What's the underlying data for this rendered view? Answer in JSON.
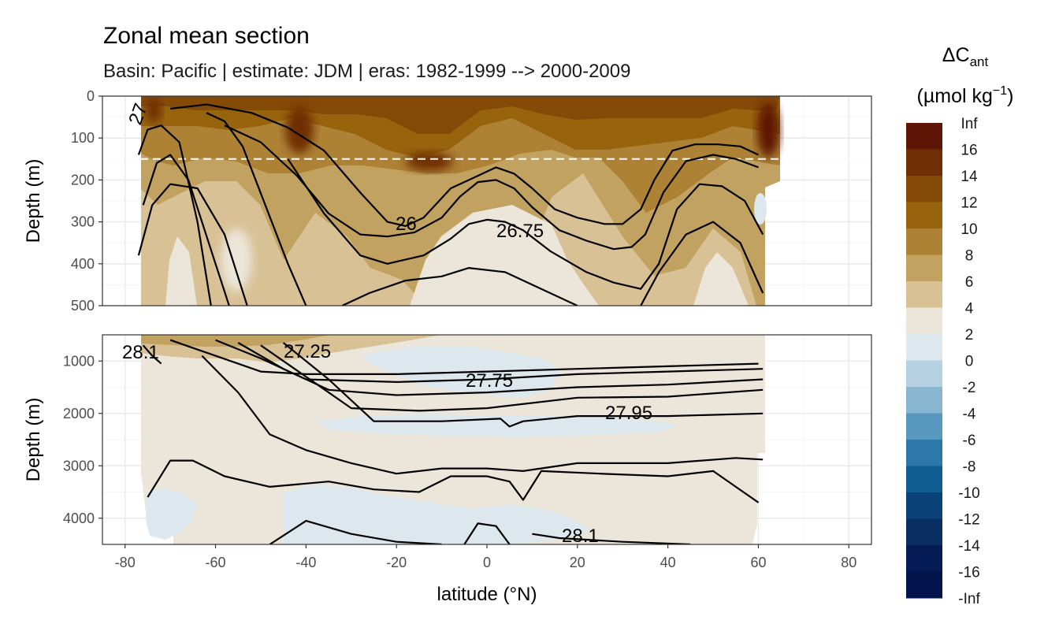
{
  "chart_data": {
    "type": "heatmap",
    "title": "Zonal mean section",
    "subtitle": "Basin: Pacific | estimate: JDM  | eras: 1982-1999 --> 2000-2009",
    "xlabel": "latitude (°N)",
    "ylabel_top": "Depth (m)",
    "ylabel_bottom": "Depth (m)",
    "xlim": [
      -85,
      85
    ],
    "xticks": [
      "-80",
      "-60",
      "-40",
      "-20",
      "0",
      "20",
      "40",
      "60",
      "80"
    ],
    "top_panel": {
      "ylim": [
        0,
        500
      ],
      "yticks": [
        "0",
        "100",
        "200",
        "300",
        "400",
        "500"
      ],
      "reference_depth": 150
    },
    "bottom_panel": {
      "ylim": [
        500,
        4500
      ],
      "yticks": [
        "1000",
        "2000",
        "3000",
        "4000"
      ]
    },
    "legend": {
      "title_main": "ΔC",
      "title_sub": "ant",
      "units_prefix": "(µmol kg",
      "units_sup": "−1",
      "units_suffix": ")",
      "labels": [
        "Inf",
        "16",
        "14",
        "12",
        "10",
        "8",
        "6",
        "4",
        "2",
        "0",
        "-2",
        "-4",
        "-6",
        "-8",
        "-10",
        "-12",
        "-14",
        "-16",
        "-Inf"
      ],
      "colors": [
        "#5e1505",
        "#6f2f04",
        "#844a08",
        "#97640d",
        "#ad8235",
        "#c2a260",
        "#d8c195",
        "#ebe6d9",
        "#dde8ee",
        "#b6d1e2",
        "#88b6d1",
        "#5897be",
        "#2c78a8",
        "#0f5c92",
        "#0a4278",
        "#082e62",
        "#041a55",
        "#03134b"
      ]
    },
    "contour_labels": [
      "26",
      "26.75",
      "27.25",
      "27.75",
      "27.95",
      "28.1",
      "28.1",
      "27"
    ],
    "contours_top": [
      [
        [
          -77,
          140
        ],
        [
          -75,
          80
        ],
        [
          -72,
          70
        ],
        [
          -68,
          110
        ],
        [
          -64,
          300
        ],
        [
          -61,
          500
        ]
      ],
      [
        [
          -76,
          260
        ],
        [
          -73,
          160
        ],
        [
          -70,
          140
        ],
        [
          -66,
          200
        ],
        [
          -60,
          400
        ],
        [
          -57,
          500
        ]
      ],
      [
        [
          -77,
          380
        ],
        [
          -74,
          260
        ],
        [
          -70,
          210
        ],
        [
          -64,
          220
        ],
        [
          -58,
          330
        ],
        [
          -53,
          500
        ]
      ],
      [
        [
          -62,
          40
        ],
        [
          -58,
          60
        ],
        [
          -54,
          120
        ],
        [
          -49,
          260
        ],
        [
          -44,
          400
        ],
        [
          -40,
          500
        ]
      ],
      [
        [
          -70,
          30
        ],
        [
          -62,
          20
        ],
        [
          -52,
          40
        ],
        [
          -44,
          75
        ],
        [
          -36,
          130
        ],
        [
          -28,
          230
        ],
        [
          -22,
          300
        ],
        [
          -18,
          310
        ],
        [
          -14,
          290
        ],
        [
          -8,
          220
        ],
        [
          -2,
          190
        ],
        [
          2,
          170
        ],
        [
          6,
          185
        ],
        [
          10,
          220
        ],
        [
          15,
          270
        ],
        [
          20,
          290
        ],
        [
          26,
          305
        ],
        [
          30,
          305
        ],
        [
          34,
          270
        ],
        [
          37,
          200
        ],
        [
          41,
          130
        ],
        [
          46,
          115
        ],
        [
          51,
          115
        ],
        [
          56,
          120
        ],
        [
          60,
          140
        ]
      ],
      [
        [
          -58,
          70
        ],
        [
          -50,
          110
        ],
        [
          -42,
          190
        ],
        [
          -35,
          280
        ],
        [
          -28,
          330
        ],
        [
          -22,
          335
        ],
        [
          -16,
          325
        ],
        [
          -10,
          290
        ],
        [
          -6,
          240
        ],
        [
          -2,
          205
        ],
        [
          2,
          200
        ],
        [
          6,
          220
        ],
        [
          10,
          265
        ],
        [
          16,
          320
        ],
        [
          22,
          345
        ],
        [
          28,
          365
        ],
        [
          32,
          360
        ],
        [
          35,
          330
        ],
        [
          39,
          230
        ],
        [
          44,
          155
        ],
        [
          50,
          140
        ],
        [
          55,
          150
        ],
        [
          60,
          170
        ]
      ],
      [
        [
          -44,
          150
        ],
        [
          -36,
          280
        ],
        [
          -28,
          380
        ],
        [
          -22,
          400
        ],
        [
          -14,
          380
        ],
        [
          -8,
          340
        ],
        [
          -4,
          305
        ],
        [
          0,
          295
        ],
        [
          4,
          300
        ],
        [
          8,
          320
        ],
        [
          14,
          370
        ],
        [
          22,
          420
        ],
        [
          28,
          445
        ],
        [
          34,
          460
        ],
        [
          38,
          400
        ],
        [
          42,
          270
        ],
        [
          47,
          210
        ],
        [
          52,
          215
        ],
        [
          57,
          250
        ],
        [
          61,
          330
        ]
      ],
      [
        [
          -32,
          500
        ],
        [
          -26,
          470
        ],
        [
          -18,
          440
        ],
        [
          -10,
          430
        ],
        [
          -4,
          410
        ],
        [
          4,
          420
        ],
        [
          10,
          450
        ],
        [
          18,
          490
        ],
        [
          20,
          500
        ]
      ],
      [
        [
          34,
          500
        ],
        [
          38,
          420
        ],
        [
          44,
          330
        ],
        [
          50,
          300
        ],
        [
          56,
          350
        ],
        [
          61,
          470
        ]
      ]
    ],
    "contours_bottom": [
      [
        [
          -76,
          700
        ],
        [
          -74,
          900
        ],
        [
          -72,
          1050
        ]
      ],
      [
        [
          -70,
          600
        ],
        [
          -60,
          900
        ],
        [
          -50,
          1200
        ],
        [
          -40,
          1250
        ],
        [
          -20,
          1250
        ],
        [
          0,
          1200
        ],
        [
          20,
          1150
        ],
        [
          40,
          1100
        ],
        [
          60,
          1050
        ]
      ],
      [
        [
          -60,
          600
        ],
        [
          -50,
          950
        ],
        [
          -40,
          1350
        ],
        [
          -20,
          1400
        ],
        [
          0,
          1350
        ],
        [
          20,
          1250
        ],
        [
          40,
          1200
        ],
        [
          61,
          1150
        ]
      ],
      [
        [
          -55,
          650
        ],
        [
          -45,
          1150
        ],
        [
          -35,
          1550
        ],
        [
          -20,
          1650
        ],
        [
          0,
          1600
        ],
        [
          20,
          1500
        ],
        [
          40,
          1450
        ],
        [
          61,
          1350
        ]
      ],
      [
        [
          -50,
          700
        ],
        [
          -40,
          1300
        ],
        [
          -30,
          1900
        ],
        [
          -15,
          1950
        ],
        [
          0,
          1900
        ],
        [
          20,
          1700
        ],
        [
          40,
          1680
        ],
        [
          61,
          1550
        ]
      ],
      [
        [
          -45,
          650
        ],
        [
          -35,
          1350
        ],
        [
          -25,
          2150
        ],
        [
          -10,
          2150
        ],
        [
          3,
          2100
        ],
        [
          5,
          2250
        ],
        [
          8,
          2150
        ],
        [
          20,
          2050
        ],
        [
          40,
          2050
        ],
        [
          61,
          2000
        ]
      ],
      [
        [
          -63,
          900
        ],
        [
          -55,
          1600
        ],
        [
          -48,
          2400
        ],
        [
          -40,
          2700
        ],
        [
          -30,
          2950
        ],
        [
          -20,
          3150
        ],
        [
          -10,
          3050
        ],
        [
          0,
          3050
        ],
        [
          8,
          3100
        ],
        [
          20,
          2950
        ],
        [
          40,
          2950
        ],
        [
          55,
          2850
        ],
        [
          61,
          2880
        ]
      ],
      [
        [
          -75,
          3600
        ],
        [
          -70,
          2900
        ],
        [
          -65,
          2900
        ],
        [
          -58,
          3200
        ],
        [
          -48,
          3400
        ],
        [
          -35,
          3300
        ],
        [
          -25,
          3450
        ],
        [
          -15,
          3500
        ],
        [
          -8,
          3200
        ],
        [
          0,
          3200
        ],
        [
          5,
          3300
        ],
        [
          8,
          3650
        ],
        [
          12,
          3100
        ],
        [
          25,
          3150
        ],
        [
          40,
          3200
        ],
        [
          50,
          3100
        ],
        [
          55,
          3400
        ],
        [
          60,
          3700
        ]
      ],
      [
        [
          -48,
          4500
        ],
        [
          -40,
          4050
        ],
        [
          -30,
          4300
        ],
        [
          -20,
          4450
        ],
        [
          -10,
          4500
        ]
      ],
      [
        [
          -5,
          4500
        ],
        [
          -2,
          4100
        ],
        [
          2,
          4150
        ],
        [
          5,
          4500
        ]
      ],
      [
        [
          10,
          4300
        ],
        [
          16,
          4380
        ],
        [
          30,
          4450
        ],
        [
          45,
          4500
        ]
      ]
    ]
  }
}
